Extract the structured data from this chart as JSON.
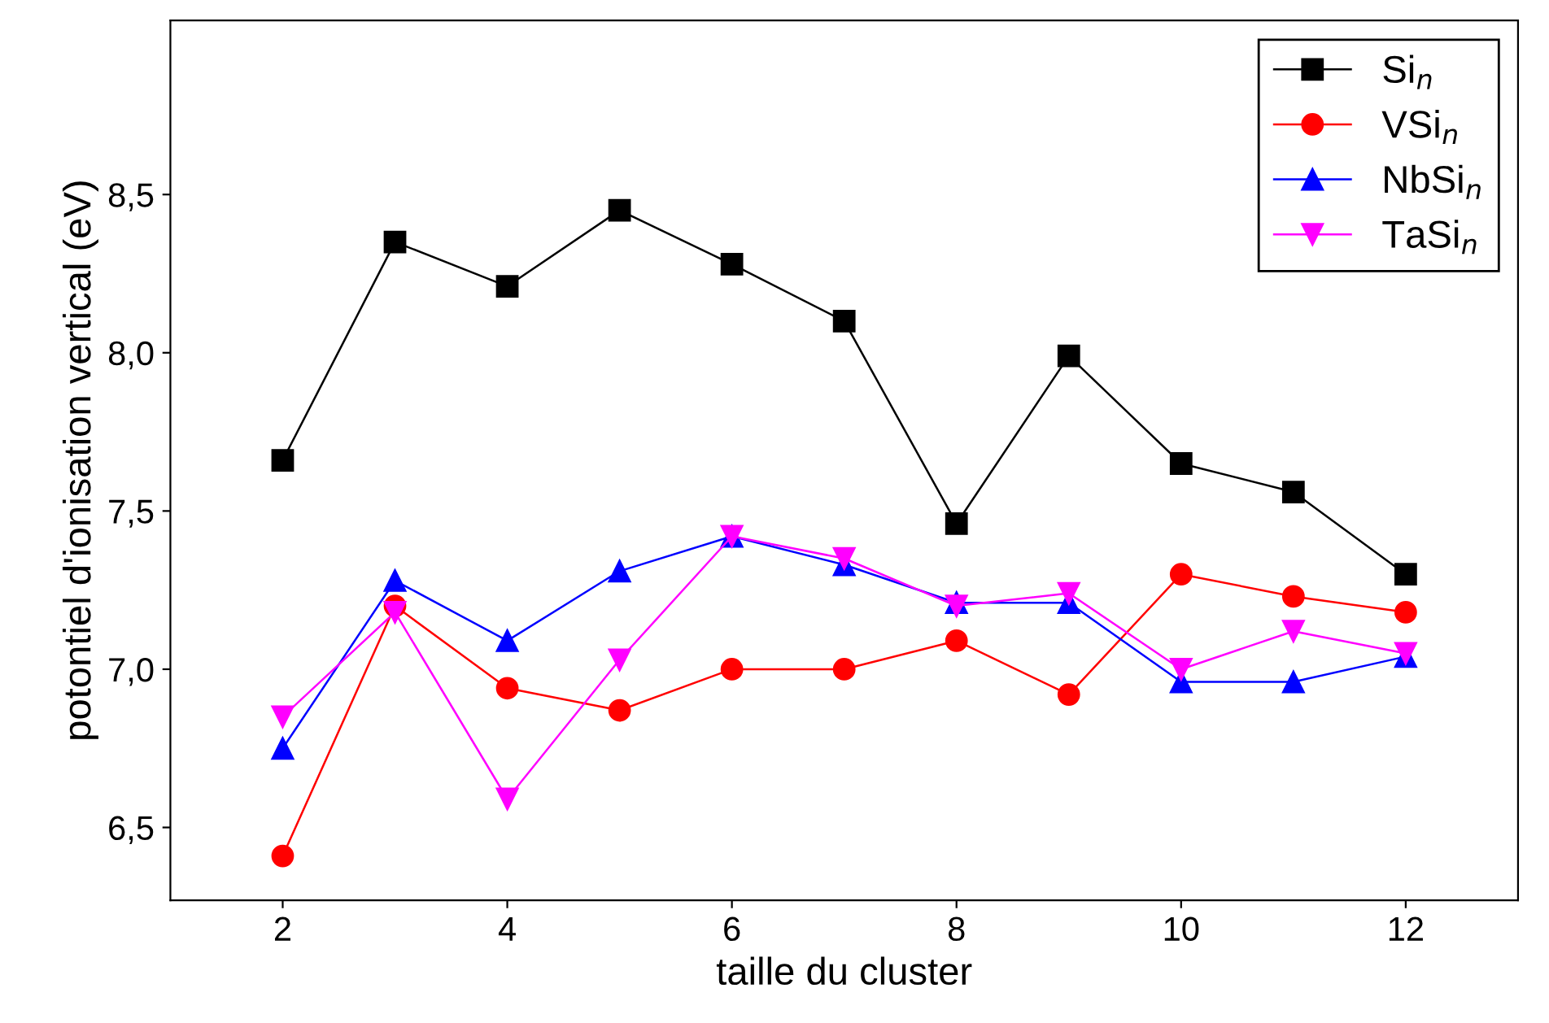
{
  "chart_data": {
    "type": "line",
    "xlabel": "taille du cluster",
    "ylabel": "potontiel d'ionisation vertical (eV)",
    "x": [
      2,
      3,
      4,
      5,
      6,
      7,
      8,
      9,
      10,
      11,
      12
    ],
    "series": [
      {
        "name": "Si$_{n}$",
        "color": "#000000",
        "marker": "square",
        "values": [
          7.66,
          8.35,
          8.21,
          8.45,
          8.28,
          8.1,
          7.46,
          7.99,
          7.65,
          7.56,
          7.3
        ]
      },
      {
        "name": "VSi$_{n}$",
        "color": "#ff0000",
        "marker": "circle",
        "values": [
          6.41,
          7.2,
          6.94,
          6.87,
          7.0,
          7.0,
          7.09,
          6.92,
          7.3,
          7.23,
          7.18
        ]
      },
      {
        "name": "NbSi$_{n}$",
        "color": "#0000ff",
        "marker": "triangle",
        "values": [
          6.75,
          7.28,
          7.09,
          7.31,
          7.42,
          7.33,
          7.21,
          7.21,
          6.96,
          6.96,
          7.04
        ]
      },
      {
        "name": "TaSi$_{n}$",
        "color": "#ff00ff",
        "marker": "triangle_down",
        "values": [
          6.85,
          7.18,
          6.59,
          7.03,
          7.42,
          7.35,
          7.2,
          7.24,
          7.0,
          7.12,
          7.05
        ]
      }
    ],
    "xlim": [
      1,
      13
    ],
    "xticks": [
      2,
      4,
      6,
      8,
      10,
      12
    ],
    "ylim": [
      6.27,
      9.05
    ],
    "yticks": [
      {
        "value": 6.5,
        "label": "6,5"
      },
      {
        "value": 7.0,
        "label": "7,0"
      },
      {
        "value": 7.5,
        "label": "7,5"
      },
      {
        "value": 8.0,
        "label": "8,0"
      },
      {
        "value": 8.5,
        "label": "8,5"
      }
    ],
    "legend": "top right",
    "grid": false,
    "line_style": "solid"
  }
}
